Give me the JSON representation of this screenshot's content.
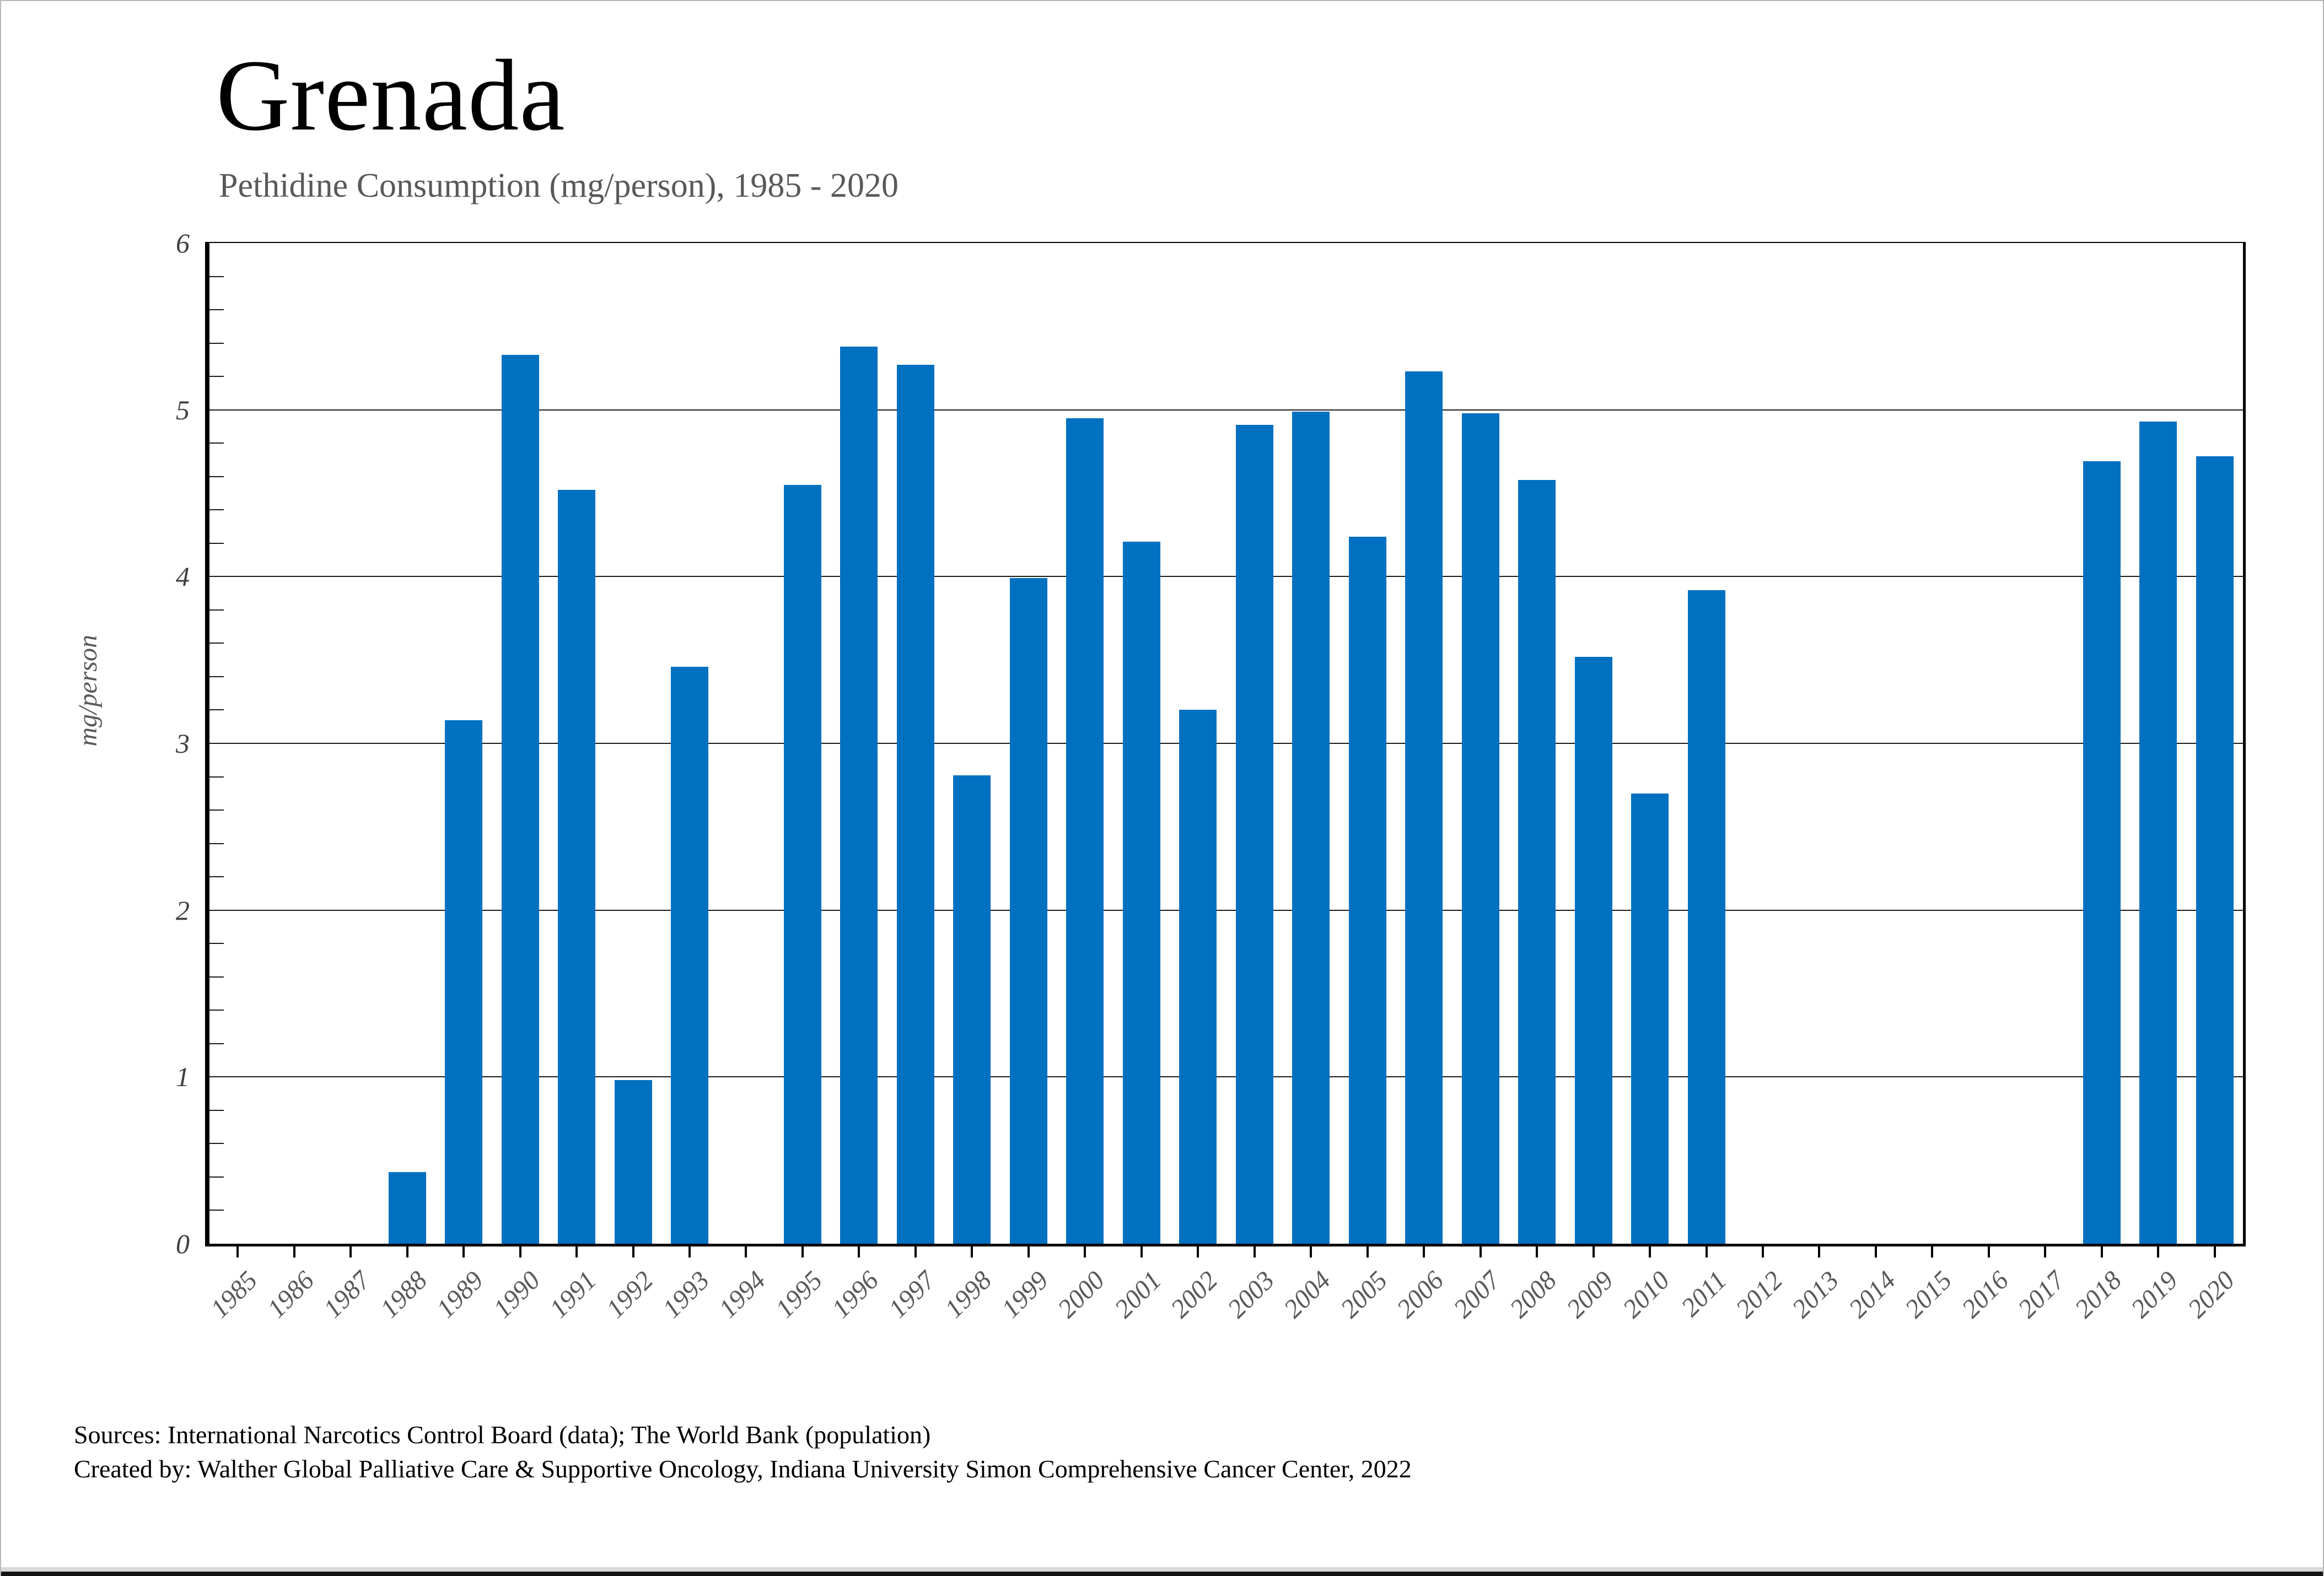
{
  "chart_data": {
    "type": "bar",
    "title": "Grenada",
    "subtitle": "Pethidine Consumption (mg/person), 1985 - 2020",
    "ylabel": "mg/person",
    "xlabel": "",
    "ylim": [
      0,
      6
    ],
    "ytick_step": 1,
    "yticks": [
      "0",
      "1",
      "2",
      "3",
      "4",
      "5",
      "6"
    ],
    "y_minor_tick_step": 0.2,
    "grid": "horizontal-major",
    "legend": "none",
    "bar_color": "#0070C0",
    "categories": [
      "1985",
      "1986",
      "1987",
      "1988",
      "1989",
      "1990",
      "1991",
      "1992",
      "1993",
      "1994",
      "1995",
      "1996",
      "1997",
      "1998",
      "1999",
      "2000",
      "2001",
      "2002",
      "2003",
      "2004",
      "2005",
      "2006",
      "2007",
      "2008",
      "2009",
      "2010",
      "2011",
      "2012",
      "2013",
      "2014",
      "2015",
      "2016",
      "2017",
      "2018",
      "2019",
      "2020"
    ],
    "values": [
      0,
      0,
      0,
      0.43,
      3.14,
      5.33,
      4.52,
      0.98,
      3.46,
      0,
      4.55,
      5.38,
      5.27,
      2.81,
      3.99,
      4.95,
      4.21,
      3.2,
      4.91,
      4.99,
      4.24,
      5.23,
      4.98,
      4.58,
      3.52,
      2.7,
      3.92,
      0,
      0,
      0,
      0,
      0,
      0,
      4.69,
      4.93,
      4.72
    ]
  },
  "footer": {
    "sources": "Sources: International Narcotics Control Board (data); The World Bank (population)",
    "created_by": "Created by: Walther Global Palliative Care & Supportive Oncology, Indiana University Simon Comprehensive Cancer Center, 2022"
  }
}
